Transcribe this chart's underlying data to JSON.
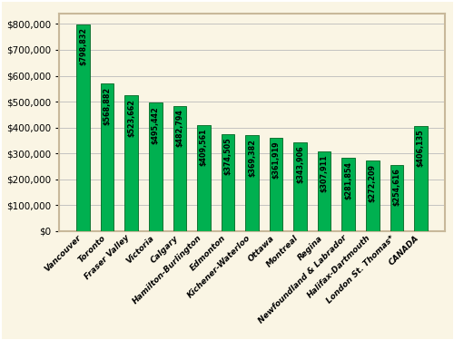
{
  "title": "",
  "categories": [
    "Vancouver",
    "Toronto",
    "Fraser Valley",
    "Victoria",
    "Calgary",
    "Hamilton-Burlington",
    "Edmonton",
    "Kichener-Waterloo",
    "Ottawa",
    "Montreal",
    "Regina",
    "Newfoundland & Labrador",
    "Halifax-Dartmouth",
    "London St. Thomas*",
    "CANADA"
  ],
  "values": [
    798832,
    568882,
    523662,
    495442,
    482794,
    409561,
    374505,
    369382,
    361919,
    343906,
    307911,
    281854,
    272209,
    254616,
    406135
  ],
  "bar_color": "#00B050",
  "bar_edge_color": "#006622",
  "background_color": "#FAF5E4",
  "plot_bg_color": "#FAF5E4",
  "grid_color": "#BBBBBB",
  "border_color": "#C8B89A",
  "ylim": [
    0,
    840000
  ],
  "ytick_max": 800000,
  "ytick_interval": 100000,
  "label_fontsize": 5.8,
  "xlabel_fontsize": 6.5,
  "ylabel_fontsize": 7.5,
  "bar_width": 0.55
}
